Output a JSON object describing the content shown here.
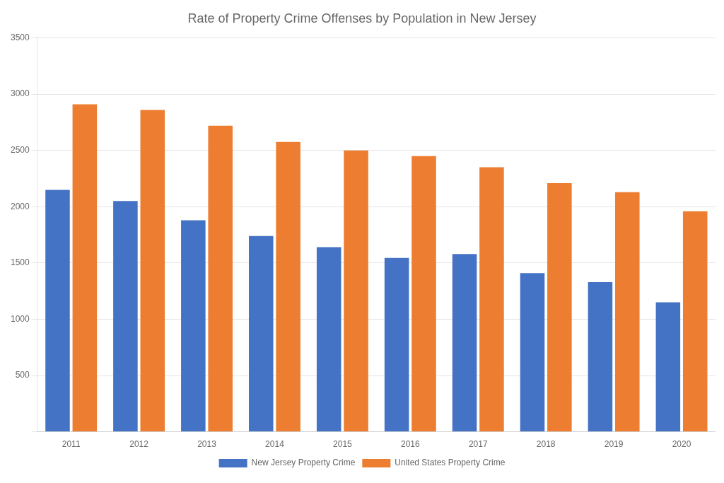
{
  "chart_data": {
    "type": "bar",
    "title": "Rate of Property Crime Offenses by Population in New Jersey",
    "categories": [
      "2011",
      "2012",
      "2013",
      "2014",
      "2015",
      "2016",
      "2017",
      "2018",
      "2019",
      "2020"
    ],
    "series": [
      {
        "name": "New Jersey Property Crime",
        "color": "#4472C4",
        "values": [
          2150,
          2050,
          1880,
          1740,
          1640,
          1545,
          1580,
          1410,
          1330,
          1150
        ]
      },
      {
        "name": "United States Property Crime",
        "color": "#ED7D31",
        "values": [
          2910,
          2860,
          2720,
          2575,
          2500,
          2450,
          2350,
          2210,
          2130,
          1960
        ]
      }
    ],
    "ylim": [
      0,
      3500
    ],
    "yticks": [
      {
        "value": 0,
        "label": ""
      },
      500,
      1000,
      1500,
      2000,
      2500,
      3000,
      3500
    ],
    "grid": true,
    "legend": "bottom"
  }
}
